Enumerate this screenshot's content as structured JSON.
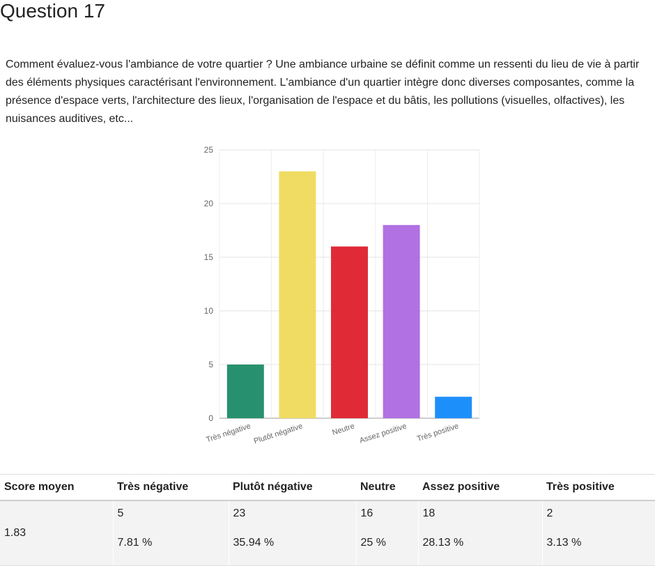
{
  "question": {
    "title": "Question 17",
    "text": "Comment évaluez-vous l'ambiance de votre quartier ?  Une ambiance urbaine se définit comme un ressenti du lieu de vie à partir des éléments physiques caractérisant l'environnement.  L'ambiance d'un quartier intègre donc diverses composantes, comme la présence d'espace verts, l'architecture des lieux, l'organisation de l'espace et du bâtis, les pollutions (visuelles, olfactives), les nuisances auditives, etc..."
  },
  "chart_data": {
    "type": "bar",
    "categories": [
      "Très négative",
      "Plutôt négative",
      "Neutre",
      "Assez positive",
      "Très positive"
    ],
    "values": [
      5,
      23,
      16,
      18,
      2
    ],
    "colors": [
      "#27906f",
      "#f0dc62",
      "#e02a36",
      "#b171e3",
      "#1d8ffb"
    ],
    "ylim": [
      0,
      25
    ],
    "yticks": [
      0,
      5,
      10,
      15,
      20,
      25
    ],
    "grid": true
  },
  "table": {
    "headers": [
      "Score moyen",
      "Très négative",
      "Plutôt négative",
      "Neutre",
      "Assez positive",
      "Très positive"
    ],
    "score": "1.83",
    "counts": [
      "5",
      "23",
      "16",
      "18",
      "2"
    ],
    "percents": [
      "7.81 %",
      "35.94 %",
      "25 %",
      "28.13 %",
      "3.13 %"
    ]
  }
}
